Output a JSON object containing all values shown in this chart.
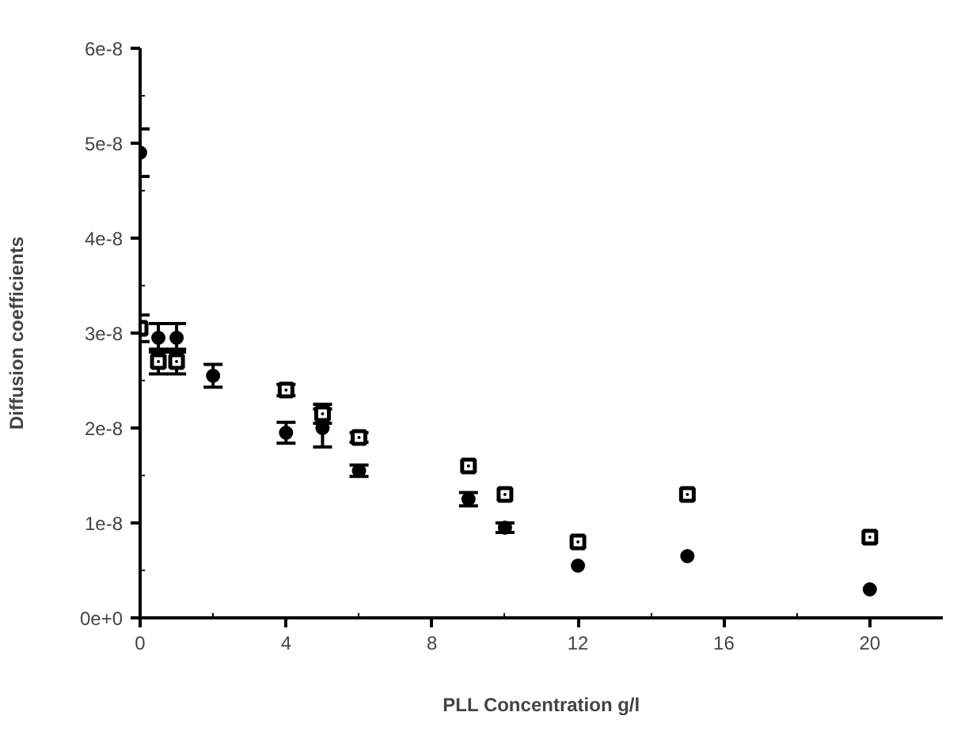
{
  "chart_data": {
    "type": "scatter",
    "xlabel": "PLL Concentration g/l",
    "ylabel": "Diffusion coefficients",
    "xlim": [
      0,
      22
    ],
    "ylim": [
      0,
      6e-08
    ],
    "xticks": [
      0,
      {
        "value": 2,
        "label": null
      },
      4,
      {
        "value": 6,
        "label": null
      },
      8,
      {
        "value": 10,
        "label": null
      },
      12,
      {
        "value": 14,
        "label": null
      },
      16,
      {
        "value": 18,
        "label": null
      },
      20
    ],
    "yticks": [
      {
        "value": 0,
        "label": "0e+0"
      },
      {
        "value": 5e-09,
        "label": null
      },
      {
        "value": 1e-08,
        "label": "1e-8"
      },
      {
        "value": 1.5e-08,
        "label": null
      },
      {
        "value": 2e-08,
        "label": "2e-8"
      },
      {
        "value": 2.5e-08,
        "label": null
      },
      {
        "value": 3e-08,
        "label": "3e-8"
      },
      {
        "value": 3.5e-08,
        "label": null
      },
      {
        "value": 4e-08,
        "label": "4e-8"
      },
      {
        "value": 4.5e-08,
        "label": null
      },
      {
        "value": 5e-08,
        "label": "5e-8"
      },
      {
        "value": 5.5e-08,
        "label": null
      },
      {
        "value": 6e-08,
        "label": "6e-8"
      }
    ],
    "grid": false,
    "series": [
      {
        "color": "#000000",
        "marker": "circle",
        "x": [
          0,
          0.5,
          1,
          2,
          4,
          5,
          6,
          9,
          10,
          12,
          15,
          20
        ],
        "values": [
          4.9e-08,
          2.95e-08,
          2.95e-08,
          2.55e-08,
          1.95e-08,
          2e-08,
          1.55e-08,
          1.25e-08,
          9.5e-09,
          5.5e-09,
          6.5e-09,
          3e-09
        ],
        "errors": [
          2.5e-09,
          1.5e-09,
          1.5e-09,
          1.2e-09,
          1.1e-09,
          2e-09,
          6e-10,
          7e-10,
          5e-10,
          null,
          null,
          null
        ]
      },
      {
        "color": "#000000",
        "marker": "square",
        "x": [
          0,
          0.5,
          1,
          4,
          5,
          6,
          9,
          10,
          12,
          15,
          20
        ],
        "values": [
          3.05e-08,
          2.7e-08,
          2.7e-08,
          2.4e-08,
          2.15e-08,
          1.9e-08,
          1.6e-08,
          1.3e-08,
          8e-09,
          1.3e-08,
          8.5e-09
        ],
        "errors": [
          1.4e-09,
          1.3e-09,
          1.3e-09,
          6e-10,
          1e-09,
          5e-10,
          null,
          null,
          null,
          null,
          null
        ]
      }
    ]
  }
}
